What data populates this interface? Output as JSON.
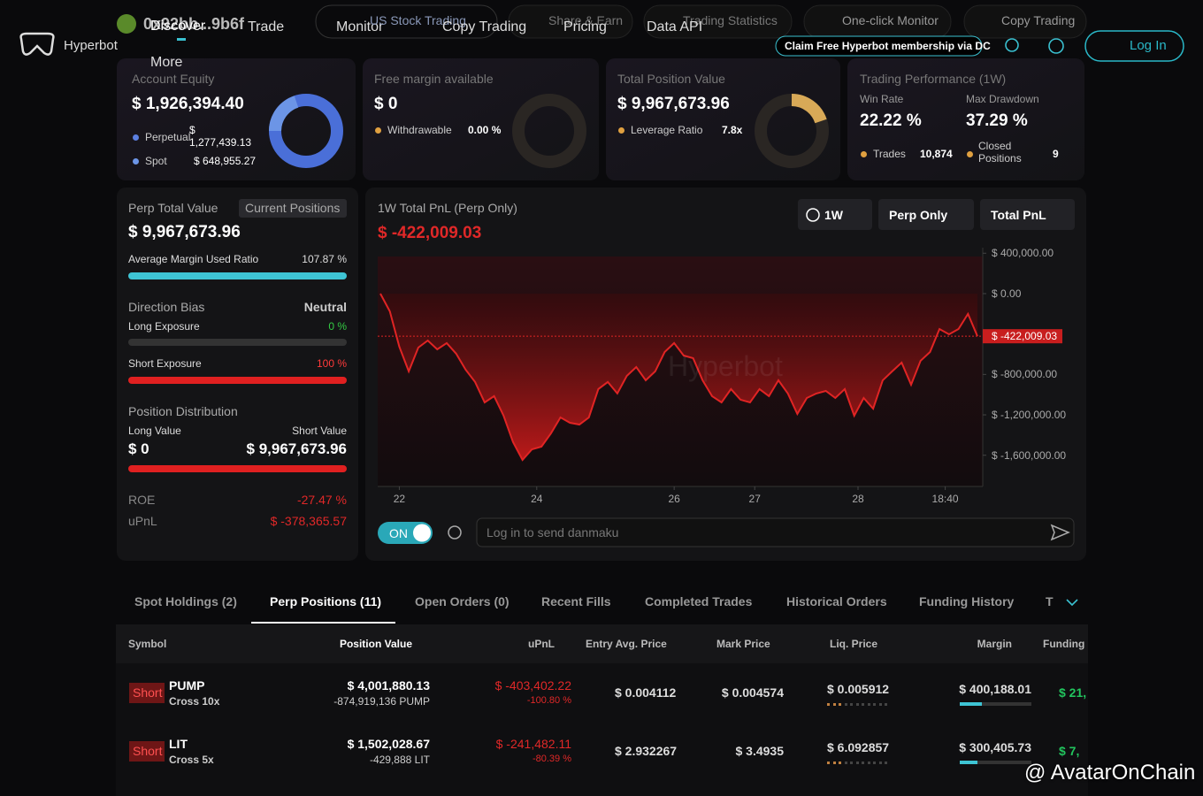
{
  "nav": {
    "brand": "Hyperbot",
    "wallet": "0x92bb...9b6f",
    "items": [
      "Discover",
      "Trade",
      "Monitor",
      "US Stock Trading",
      "Copy Trading",
      "Share & Earn",
      "Pricing",
      "Trading Statistics",
      "Data API",
      "One-click Monitor",
      "Copy Trading",
      "More"
    ],
    "promo": "Claim Free Hyperbot membership via DC",
    "login": "Log In"
  },
  "summary": {
    "account_equity": {
      "label": "Account Equity",
      "value": "$ 1,926,394.40",
      "perp_label": "Perpetual",
      "perp": "$ 1,277,439.13",
      "spot_label": "Spot",
      "spot": "$ 648,955.27"
    },
    "free_margin": {
      "label": "Free margin available",
      "value": "$ 0",
      "sub_label": "Withdrawable",
      "sub": "0.00 %"
    },
    "position_value": {
      "label": "Total Position Value",
      "value": "$ 9,967,673.96",
      "sub_label": "Leverage Ratio",
      "sub": "7.8x"
    },
    "performance": {
      "label": "Trading Performance (1W)",
      "win_rate_label": "Win Rate",
      "win_rate": "22.22 %",
      "drawdown_label": "Max Drawdown",
      "drawdown": "37.29 %",
      "trades_label": "Trades",
      "trades": "10,874",
      "closed_label": "Closed Positions",
      "closed": "9"
    }
  },
  "perp": {
    "label": "Perp Total Value",
    "tab": "Current Positions",
    "value": "$ 9,967,673.96",
    "margin_label": "Average Margin Used Ratio",
    "margin": "107.87 %",
    "bias_label": "Direction Bias",
    "bias": "Neutral",
    "long_label": "Long Exposure",
    "long": "0 %",
    "short_label": "Short Exposure",
    "short": "100 %",
    "dist_label": "Position Distribution",
    "long_value_label": "Long Value",
    "long_value": "$ 0",
    "short_value_label": "Short Value",
    "short_value": "$ 9,967,673.96",
    "roe_label": "ROE",
    "roe": "-27.47 %",
    "upnl_label": "uPnL",
    "upnl": "$ -378,365.57"
  },
  "pnl": {
    "title": "1W Total PnL (Perp Only)",
    "value": "$ -422,009.03",
    "filters": [
      "1W",
      "Perp Only",
      "Total PnL"
    ],
    "watermark": "Hyperbot",
    "toggle": "ON",
    "danmaku": "Log in to send danmaku",
    "chart": {
      "type": "line",
      "color": "#e02424",
      "x": [
        0,
        1,
        2,
        3,
        4,
        5,
        6,
        7,
        8,
        9,
        10,
        11,
        12,
        13,
        14,
        15,
        16,
        17,
        18,
        19,
        20,
        21,
        22,
        23,
        24,
        25,
        26,
        27,
        28,
        29,
        30,
        31,
        32,
        33,
        34,
        35,
        36,
        37,
        38,
        39,
        40,
        41,
        42,
        43,
        44,
        45,
        46,
        47,
        48,
        49,
        50,
        51,
        52,
        53,
        54,
        55,
        56,
        57,
        58,
        59,
        60,
        61,
        62,
        63
      ],
      "values": [
        0,
        -175000,
        -525000,
        -770000,
        -534000,
        -464000,
        -552000,
        -490000,
        -595000,
        -753000,
        -875000,
        -1077000,
        -1015000,
        -1208000,
        -1470000,
        -1646000,
        -1541000,
        -1515000,
        -1383000,
        -1226000,
        -1278000,
        -1296000,
        -1226000,
        -945000,
        -875000,
        -989000,
        -814000,
        -727000,
        -858000,
        -770000,
        -578000,
        -490000,
        -613000,
        -639000,
        -858000,
        -1015000,
        -1077000,
        -945000,
        -1050000,
        -1077000,
        -945000,
        -1015000,
        -858000,
        -989000,
        -1191000,
        -1033000,
        -989000,
        -963000,
        -1033000,
        -945000,
        -1208000,
        -1033000,
        -1138000,
        -858000,
        -770000,
        -683000,
        -902000,
        -665000,
        -578000,
        -350000,
        -403000,
        -350000,
        -201000,
        -422009.03
      ],
      "xlim": [
        0,
        63
      ],
      "ylim": [
        -1900000,
        455000
      ],
      "yticks": [
        {
          "value": 400000,
          "label": "$ 400,000.00"
        },
        {
          "value": 0,
          "label": "$ 0.00"
        },
        {
          "value": -800000,
          "label": "$ -800,000.00"
        },
        {
          "value": -1200000,
          "label": "$ -1,200,000.00"
        },
        {
          "value": -1600000,
          "label": "$ -1,600,000.00"
        }
      ],
      "xticks": [
        {
          "value": 2,
          "label": "22"
        },
        {
          "value": 16.5,
          "label": "24"
        },
        {
          "value": 31,
          "label": "26"
        },
        {
          "value": 39.5,
          "label": "27"
        },
        {
          "value": 50.4,
          "label": "28"
        },
        {
          "value": 59.6,
          "label": "18:40"
        }
      ],
      "current": {
        "value": -422009.03,
        "label": "$ -422,009.03"
      }
    }
  },
  "tabs": [
    "Spot Holdings (2)",
    "Perp Positions (11)",
    "Open Orders (0)",
    "Recent Fills",
    "Completed Trades",
    "Historical Orders",
    "Funding History",
    "T"
  ],
  "table": {
    "columns": [
      "Symbol",
      "Position Value",
      "uPnL",
      "Entry Avg. Price",
      "Mark Price",
      "Liq. Price",
      "Margin",
      "Funding ("
    ],
    "rows": [
      {
        "side": "Short",
        "symbol": "PUMP",
        "mode": "Cross 10x",
        "value": "$ 4,001,880.13",
        "size": "-874,919,136 PUMP",
        "upnl": "$ -403,402.22",
        "upnl_pct": "-100.80 %",
        "entry": "$ 0.004112",
        "mark": "$ 0.004574",
        "liq": "$ 0.005912",
        "margin": "$ 400,188.01",
        "funding": "$ 21,"
      },
      {
        "side": "Short",
        "symbol": "LIT",
        "mode": "Cross 5x",
        "value": "$ 1,502,028.67",
        "size": "-429,888 LIT",
        "upnl": "$ -241,482.11",
        "upnl_pct": "-80.39 %",
        "entry": "$ 2.932267",
        "mark": "$ 3.4935",
        "liq": "$ 6.092857",
        "margin": "$ 300,405.73",
        "funding": "$ 7,"
      }
    ]
  },
  "watermark": "@ AvatarOnChain"
}
